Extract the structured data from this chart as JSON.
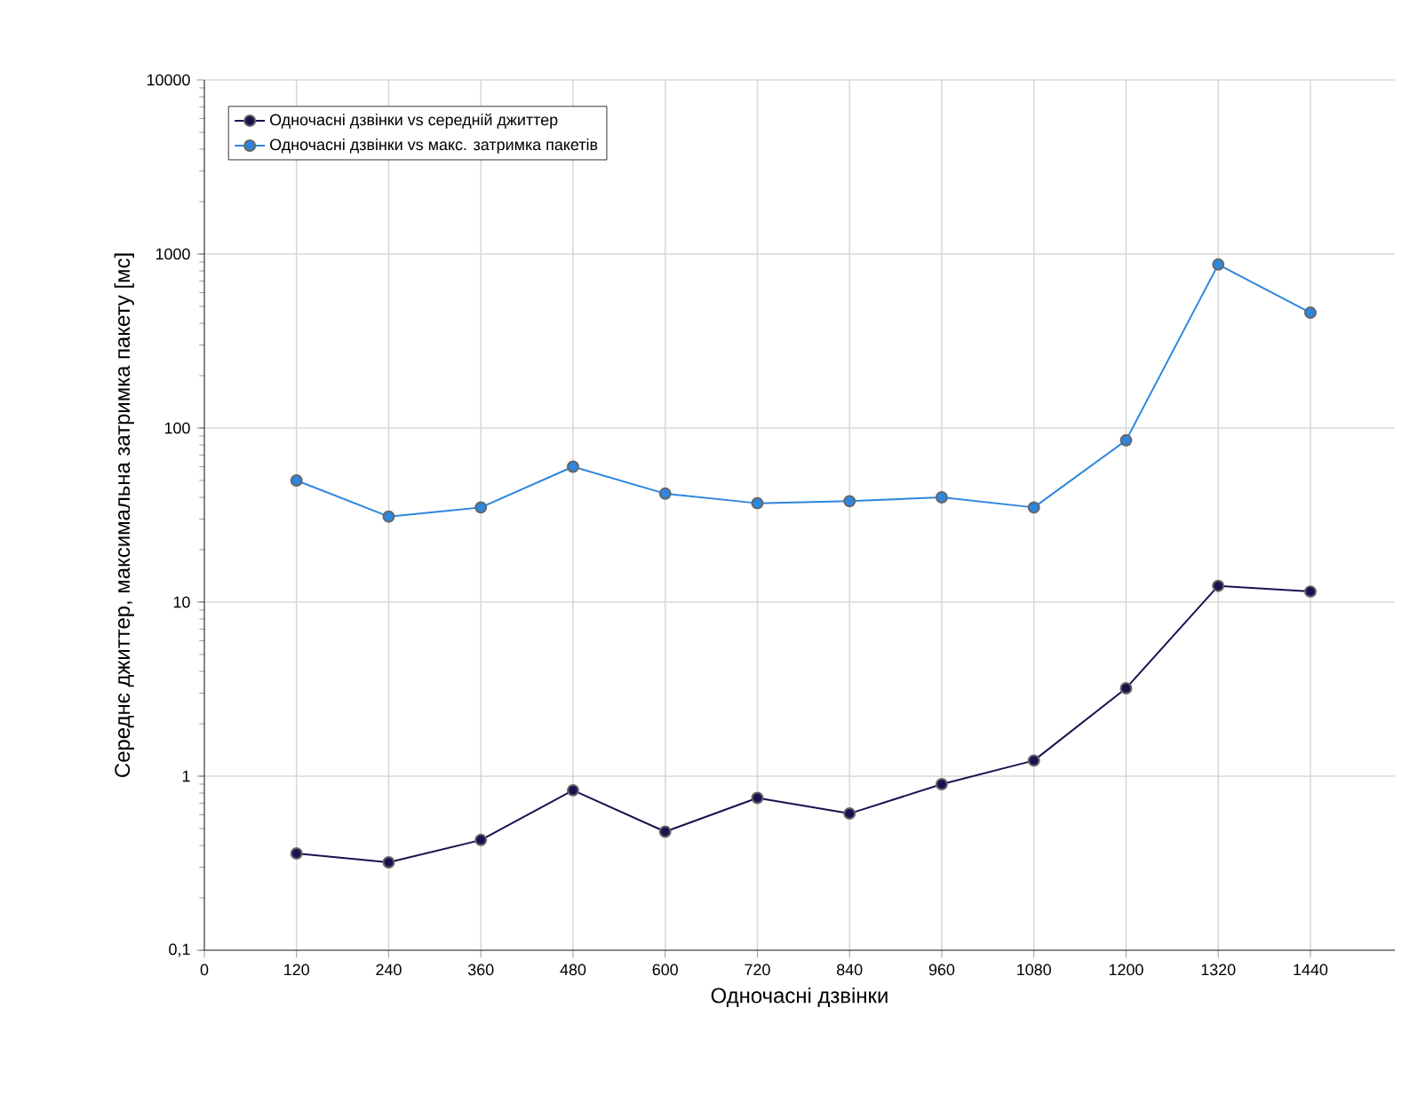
{
  "chart_data": {
    "type": "line",
    "xlabel": "Одночасні дзвінки",
    "ylabel": "Середнє джиттер, максимальна затримка пакету [мс]",
    "x": [
      120,
      240,
      360,
      480,
      600,
      720,
      840,
      960,
      1080,
      1200,
      1320,
      1440
    ],
    "series": [
      {
        "name": "Одночасні дзвінки vs середній джиттер",
        "color": "#1a1250",
        "values": [
          0.36,
          0.32,
          0.43,
          0.83,
          0.48,
          0.75,
          0.61,
          0.9,
          1.23,
          3.2,
          12.4,
          11.5
        ]
      },
      {
        "name": "Одночасні дзвінки vs макс. затримка пакетів",
        "color": "#2e86de",
        "values": [
          50,
          31,
          35,
          60,
          42,
          37,
          38,
          40,
          35,
          85,
          870,
          460
        ]
      }
    ],
    "xlim": [
      0,
      1550
    ],
    "xticks": [
      0,
      120,
      240,
      360,
      480,
      600,
      720,
      840,
      960,
      1080,
      1200,
      1320,
      1440
    ],
    "ylim": [
      0.1,
      10000
    ],
    "yticks": [
      {
        "value": 0.1,
        "label": "0,1"
      },
      1,
      10,
      100,
      1000,
      10000
    ],
    "log": true,
    "grid": true,
    "legend": "top left",
    "marker": "circle",
    "line_style": "solid"
  }
}
